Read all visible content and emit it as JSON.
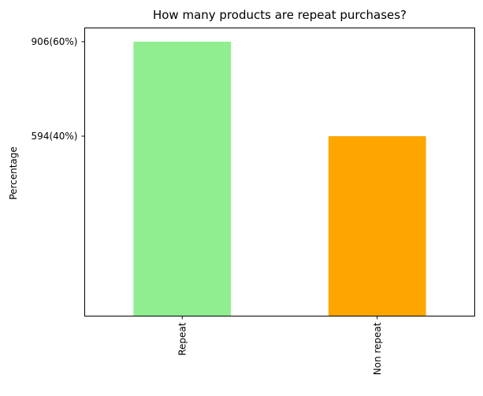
{
  "chart_data": {
    "type": "bar",
    "title": "How many products are repeat purchases?",
    "xlabel": "",
    "ylabel": "Percentage",
    "categories": [
      "Repeat",
      "Non repeat"
    ],
    "values": [
      906,
      594
    ],
    "ytick_values": [
      906,
      594
    ],
    "ytick_labels": [
      "906(60%)",
      "594(40%)"
    ],
    "ylim": [
      0,
      951.3
    ],
    "colors": [
      "#90ee90",
      "#ffa500"
    ],
    "grid": false,
    "legend": "none"
  }
}
